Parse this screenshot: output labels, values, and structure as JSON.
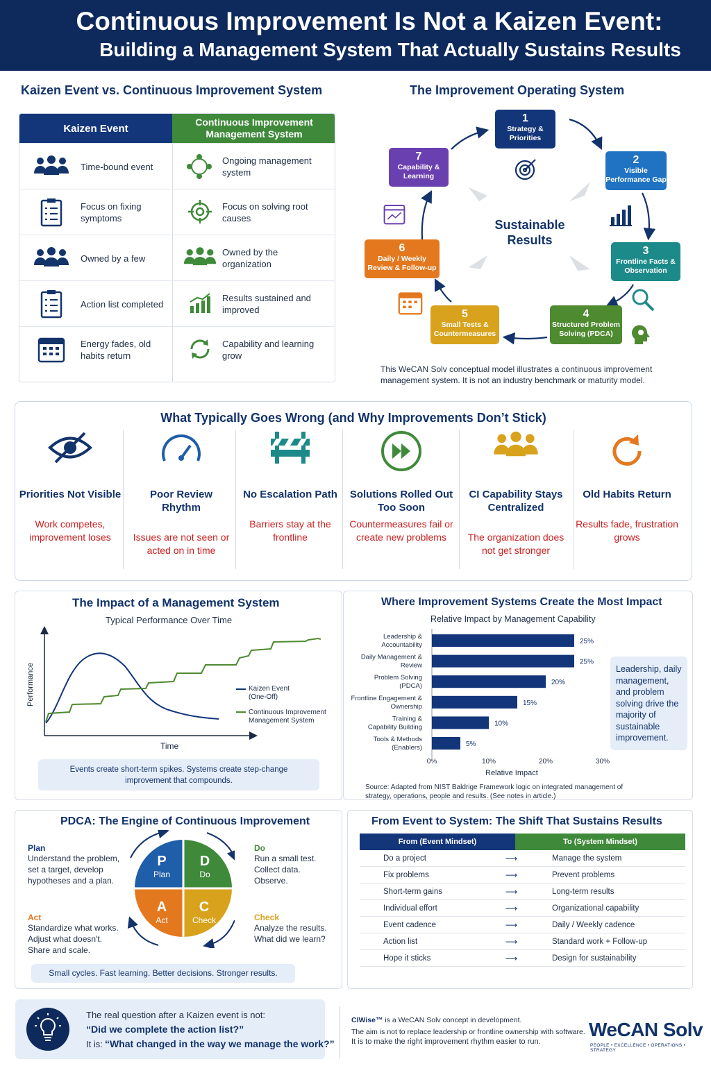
{
  "header": {
    "title": "Continuous Improvement Is Not a Kaizen Event:",
    "subtitle": "Building a Management System That Actually Sustains Results"
  },
  "comparison": {
    "title": "Kaizen Event vs. Continuous Improvement System",
    "left_header": "Kaizen Event",
    "right_header": "Continuous Improvement Management System",
    "rows": [
      {
        "left": "Time-bound event",
        "right": "Ongoing management system"
      },
      {
        "left": "Focus on fixing symptoms",
        "right": "Focus on solving root causes"
      },
      {
        "left": "Owned by a few",
        "right": "Owned by the organization"
      },
      {
        "left": "Action list completed",
        "right": "Results sustained and improved"
      },
      {
        "left": "Energy fades, old habits return",
        "right": "Capability and learning grow"
      }
    ]
  },
  "operating_system": {
    "title": "The Improvement Operating System",
    "center": "Sustainable Results",
    "steps": [
      {
        "n": "1",
        "label": "Strategy & Priorities"
      },
      {
        "n": "2",
        "label": "Visible Performance Gap"
      },
      {
        "n": "3",
        "label": "Frontline Facts & Observation"
      },
      {
        "n": "4",
        "label": "Structured Problem Solving (PDCA)"
      },
      {
        "n": "5",
        "label": "Small Tests & Countermeasures"
      },
      {
        "n": "6",
        "label": "Daily / Weekly Review & Follow-up"
      },
      {
        "n": "7",
        "label": "Capability & Learning"
      }
    ],
    "note": "This WeCAN Solv conceptual model illustrates a continuous improvement management system. It is not an industry benchmark or maturity model.",
    "colors": {
      "navy": "#13367a",
      "blue": "#1f73c2",
      "teal": "#1d8a8a",
      "green": "#4e8a2f",
      "gold": "#d8a21c",
      "orange": "#e4781e",
      "purple": "#6a3fb0"
    }
  },
  "wrong": {
    "title": "What Typically Goes Wrong (and Why Improvements Don’t Stick)",
    "items": [
      {
        "heading": "Priorities Not Visible",
        "result": "Work competes, improvement loses",
        "icon": "hidden-eye-icon"
      },
      {
        "heading": "Poor Review Rhythm",
        "result": "Issues are not seen or acted on in time",
        "icon": "gauge-icon"
      },
      {
        "heading": "No Escalation Path",
        "result": "Barriers stay at the frontline",
        "icon": "barrier-icon"
      },
      {
        "heading": "Solutions Rolled Out Too Soon",
        "result": "Countermeasures fail or create new problems",
        "icon": "fast-forward-icon"
      },
      {
        "heading": "CI Capability Stays Centralized",
        "result": "The organization does not get stronger",
        "icon": "group-icon"
      },
      {
        "heading": "Old Habits Return",
        "result": "Results fade, frustration grows",
        "icon": "cycle-icon"
      }
    ]
  },
  "impact": {
    "title": "The Impact of a Management System",
    "subtitle": "Typical Performance Over Time",
    "ylabel": "Performance",
    "xlabel": "Time",
    "legend": [
      "Kaizen Event (One-Off)",
      "Continuous Improvement Management System"
    ],
    "callout": "Events create short-term spikes. Systems create step-change improvement that compounds."
  },
  "chart_data": {
    "type": "bar",
    "title": "Where Improvement Systems Create the Most Impact",
    "subtitle": "Relative Impact by Management Capability",
    "xlabel": "Relative Impact",
    "categories": [
      "Leadership & Accountability",
      "Daily Management & Review",
      "Problem Solving (PDCA)",
      "Frontline Engagement & Ownership",
      "Training & Capability Building",
      "Tools & Methods (Enablers)"
    ],
    "values": [
      25,
      25,
      20,
      15,
      10,
      5
    ],
    "value_labels": [
      "25%",
      "25%",
      "20%",
      "15%",
      "10%",
      "5%"
    ],
    "xticks": [
      "0%",
      "10%",
      "20%",
      "30%"
    ],
    "xlim": [
      0,
      30
    ],
    "orientation": "horizontal",
    "bar_color": "#13367a",
    "callout": "Leadership, daily management, and problem solving drive the majority of sustainable improvement.",
    "source": "Source: Adapted from NIST Baldrige Framework logic on integrated management of strategy, operations, people and results. (See notes in article.)"
  },
  "pdca": {
    "title": "PDCA: The Engine of Continuous Improvement",
    "plan": {
      "heading": "Plan",
      "text": "Understand the problem, set a target, develop hypotheses and a plan.",
      "letter": "P",
      "word": "Plan"
    },
    "do": {
      "heading": "Do",
      "text": "Run a small test. Collect data. Observe.",
      "letter": "D",
      "word": "Do"
    },
    "act": {
      "heading": "Act",
      "text": "Standardize what works. Adjust what doesn't. Share and scale.",
      "letter": "A",
      "word": "Act"
    },
    "check": {
      "heading": "Check",
      "text": "Analyze the results. What did we learn?",
      "letter": "C",
      "word": "Check"
    },
    "footer": "Small cycles. Fast learning. Better decisions. Stronger results."
  },
  "shift": {
    "title": "From Event to System: The Shift That Sustains Results",
    "from_header": "From (Event Mindset)",
    "to_header": "To (System Mindset)",
    "rows": [
      {
        "from": "Do a project",
        "to": "Manage the system"
      },
      {
        "from": "Fix problems",
        "to": "Prevent problems"
      },
      {
        "from": "Short-term gains",
        "to": "Long-term results"
      },
      {
        "from": "Individual effort",
        "to": "Organizational capability"
      },
      {
        "from": "Event cadence",
        "to": "Daily / Weekly cadence"
      },
      {
        "from": "Action list",
        "to": "Standard work + Follow-up"
      },
      {
        "from": "Hope it sticks",
        "to": "Design for sustainability"
      }
    ]
  },
  "footer": {
    "q_intro": "The real question after a Kaizen event is not:",
    "q1": "“Did we complete the action list?”",
    "q2_prefix": "It is:",
    "q2": "“What changed in the way we manage the work?”",
    "ciwise_name": "CIWise™",
    "ciwise_desc": "is a WeCAN Solv concept in development.",
    "aim1": "The aim is not to replace leadership or frontline ownership with software.",
    "aim2": "It is to make the right improvement rhythm easier to run.",
    "brand": "WeCAN Solv",
    "tagline": "PEOPLE • EXCELLENCE • OPERATIONS • STRATEGY"
  }
}
